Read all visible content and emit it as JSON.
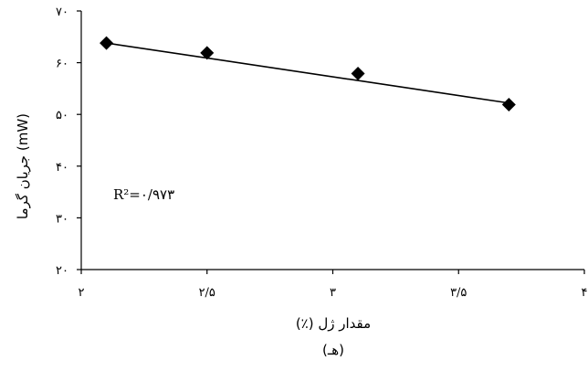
{
  "chart_data": {
    "type": "scatter",
    "title": "",
    "xlabel": "مقدار ژل (٪)",
    "ylabel": "جریان گرما (mW)",
    "xlim": [
      2,
      4
    ],
    "ylim": [
      20,
      70
    ],
    "x_ticks": [
      2,
      2.5,
      3,
      3.5,
      4
    ],
    "x_tick_labels": [
      "۲",
      "۲/۵",
      "۳",
      "۳/۵",
      "۴"
    ],
    "y_ticks": [
      20,
      30,
      40,
      50,
      60,
      70
    ],
    "y_tick_labels": [
      "۲۰",
      "۳۰",
      "۴۰",
      "۵۰",
      "۶۰",
      "۷۰"
    ],
    "grid": false,
    "legend": "none",
    "series": [
      {
        "x": [
          2.1,
          2.5,
          3.1,
          3.7
        ],
        "y": [
          63.8,
          61.9,
          57.9,
          51.9
        ],
        "marker": "diamond",
        "color": "#000000"
      }
    ],
    "trendline": {
      "type": "linear",
      "x": [
        2.1,
        3.7
      ],
      "y": [
        63.8,
        52.2
      ]
    },
    "annotation": "R²=۰/۹۷۳",
    "caption": "(هـ)"
  }
}
